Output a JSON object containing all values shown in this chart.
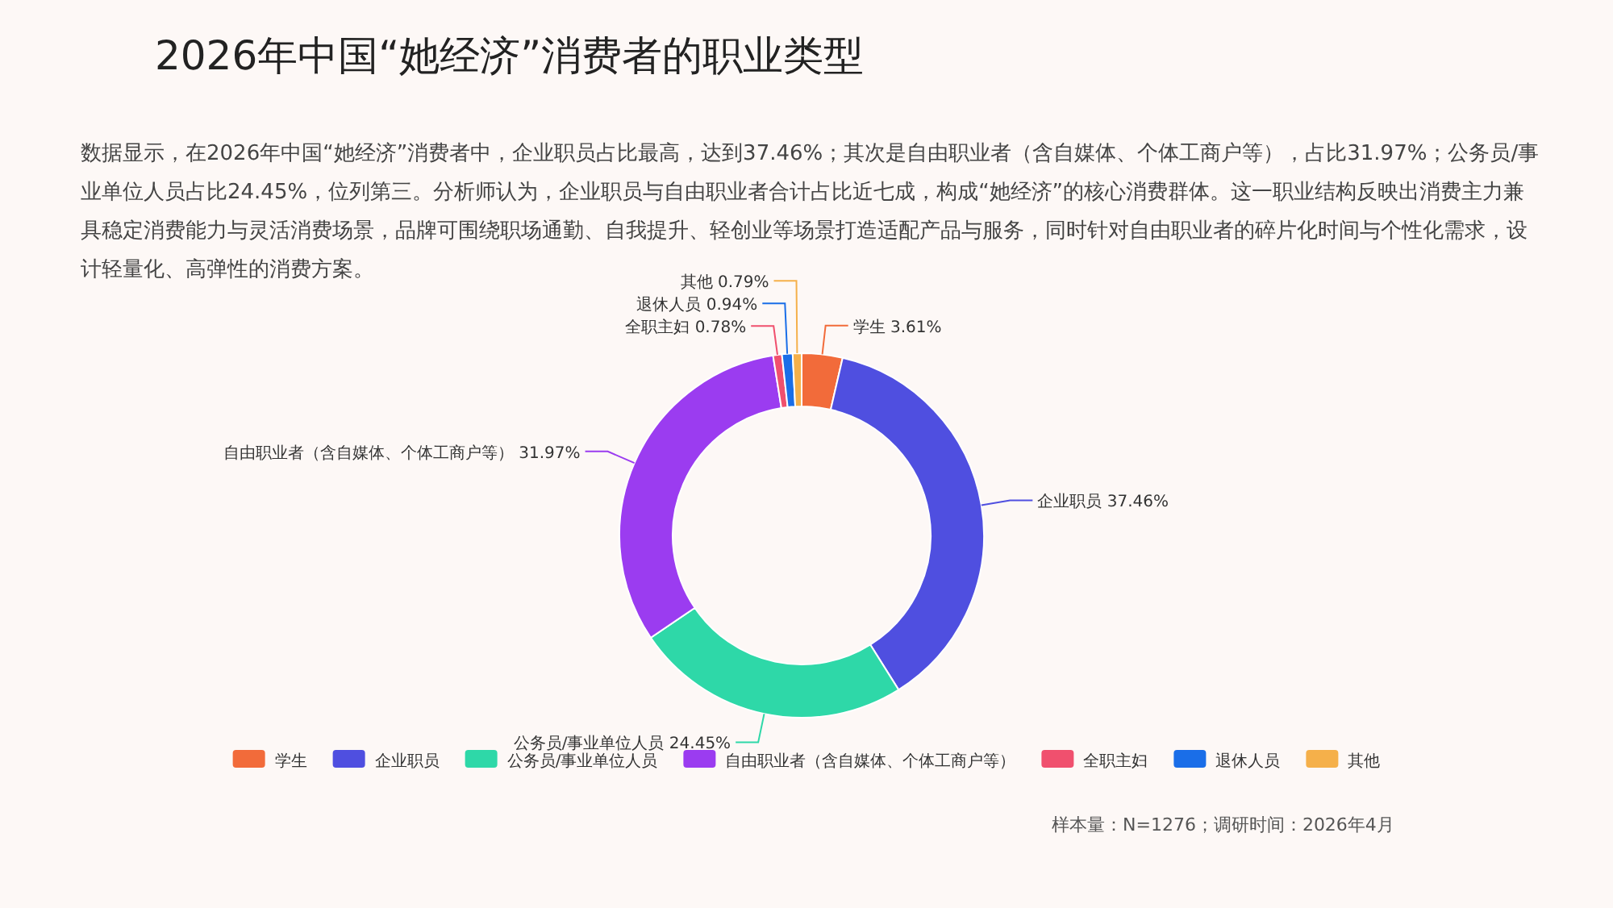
{
  "chart_data": {
    "type": "donut",
    "title": "2026年中国“她经济”消费者的职业类型",
    "subtitle": "数据显示，在2026年中国“她经济”消费者中，企业职员占比最高，达到37.46%；其次是自由职业者（含自媒体、个体工商户等），占比31.97%；公务员/事业单位人员占比24.45%，位列第三。分析师认为，企业职员与自由职业者合计占比近七成，构成“她经济”的核心消费群体。这一职业结构反映出消费主力兼具稳定消费能力与灵活消费场景，品牌可围绕职场通勤、自我提升、轻创业等场景打造适配产品与服务，同时针对自由职业者的碎片化时间与个性化需求，设计轻量化、高弹性的消费方案。",
    "categories": [
      "学生",
      "企业职员",
      "公务员/事业单位人员",
      "自由职业者（含自媒体、个体工商户等）",
      "全职主妇",
      "退休人员",
      "其他"
    ],
    "values": [
      3.61,
      37.46,
      24.45,
      31.97,
      0.78,
      0.94,
      0.79
    ],
    "colors": [
      "#f26b3a",
      "#4f4fe0",
      "#2ed8a8",
      "#9b3cf0",
      "#f0506e",
      "#1a6ee8",
      "#f5b04a"
    ],
    "value_labels": [
      "3.61%",
      "37.46%",
      "24.45%",
      "31.97%",
      "0.78%",
      "0.94%",
      "0.79%"
    ],
    "legend": "bottom",
    "annotations": [
      "样本量：N=1276；调研时间：2026年4月"
    ]
  }
}
